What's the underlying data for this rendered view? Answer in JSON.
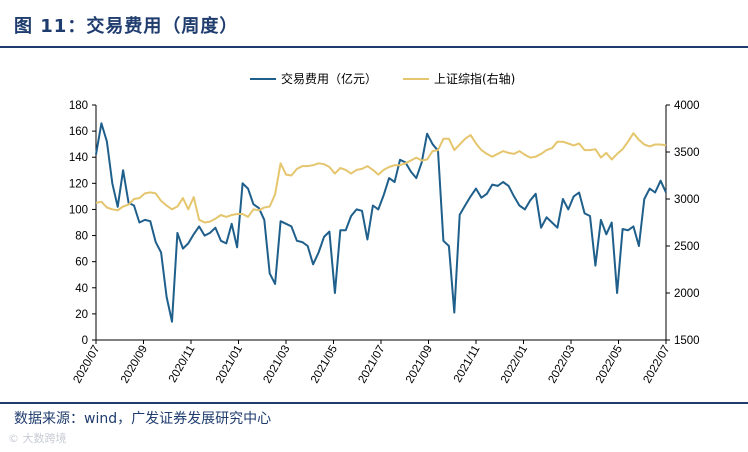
{
  "figure_title": "图 11：交易费用（周度）",
  "source": "数据来源：wind，广发证券发展研究中心",
  "watermark": "© 大数跨境",
  "colors": {
    "series_primary": "#1f5f8b",
    "series_secondary": "#e5c66e",
    "accent": "#1f3c6e"
  },
  "chart_data": {
    "type": "line",
    "title": "",
    "xlabel": "",
    "ylabel": "",
    "legend_position": "top-center",
    "grid": false,
    "x_tick_labels": [
      "2020/07",
      "2020/09",
      "2020/11",
      "2021/01",
      "2021/03",
      "2021/05",
      "2021/07",
      "2021/09",
      "2021/11",
      "2022/01",
      "2022/03",
      "2022/05",
      "2022/07"
    ],
    "y_left": {
      "lim": [
        0,
        180
      ],
      "ticks": [
        0,
        20,
        40,
        60,
        80,
        100,
        120,
        140,
        160,
        180
      ]
    },
    "y_right": {
      "lim": [
        1500,
        4000
      ],
      "ticks": [
        1500,
        2000,
        2500,
        3000,
        3500,
        4000
      ]
    },
    "series": [
      {
        "name": "交易费用（亿元）",
        "axis": "left",
        "color": "#1f5f8b",
        "values": [
          142,
          166,
          152,
          120,
          102,
          130,
          105,
          103,
          90,
          92,
          91,
          75,
          67,
          33,
          14,
          82,
          70,
          74,
          81,
          87,
          80,
          82,
          86,
          76,
          74,
          89,
          71,
          120,
          116,
          104,
          101,
          92,
          51,
          43,
          91,
          89,
          87,
          76,
          75,
          72,
          58,
          67,
          79,
          83,
          36,
          84,
          84,
          95,
          100,
          99,
          77,
          103,
          100,
          111,
          124,
          121,
          138,
          136,
          129,
          124,
          136,
          158,
          150,
          145,
          76,
          72,
          21,
          96,
          103,
          110,
          116,
          109,
          112,
          119,
          118,
          121,
          118,
          110,
          103,
          100,
          107,
          112,
          86,
          94,
          90,
          86,
          108,
          100,
          110,
          113,
          97,
          95,
          57,
          92,
          81,
          90,
          36,
          85,
          84,
          87,
          72,
          108,
          116,
          113,
          122,
          113
        ]
      },
      {
        "name": "上证综指(右轴)",
        "axis": "right",
        "color": "#e5c66e",
        "values": [
          2960,
          2970,
          2910,
          2890,
          2880,
          2920,
          2940,
          3000,
          3010,
          3060,
          3070,
          3060,
          2980,
          2930,
          2890,
          2920,
          3010,
          2890,
          3020,
          2780,
          2750,
          2760,
          2790,
          2830,
          2810,
          2830,
          2840,
          2840,
          2810,
          2890,
          2880,
          2910,
          2920,
          3050,
          3380,
          3260,
          3250,
          3320,
          3350,
          3350,
          3360,
          3380,
          3370,
          3340,
          3270,
          3330,
          3310,
          3270,
          3310,
          3320,
          3350,
          3310,
          3260,
          3310,
          3340,
          3360,
          3360,
          3380,
          3410,
          3440,
          3410,
          3420,
          3510,
          3520,
          3640,
          3640,
          3520,
          3580,
          3640,
          3680,
          3590,
          3520,
          3480,
          3450,
          3480,
          3510,
          3490,
          3480,
          3510,
          3470,
          3440,
          3450,
          3480,
          3520,
          3540,
          3610,
          3610,
          3590,
          3570,
          3590,
          3520,
          3520,
          3530,
          3440,
          3490,
          3420,
          3480,
          3530,
          3610,
          3700,
          3630,
          3580,
          3560,
          3580,
          3580,
          3570
        ]
      }
    ]
  }
}
